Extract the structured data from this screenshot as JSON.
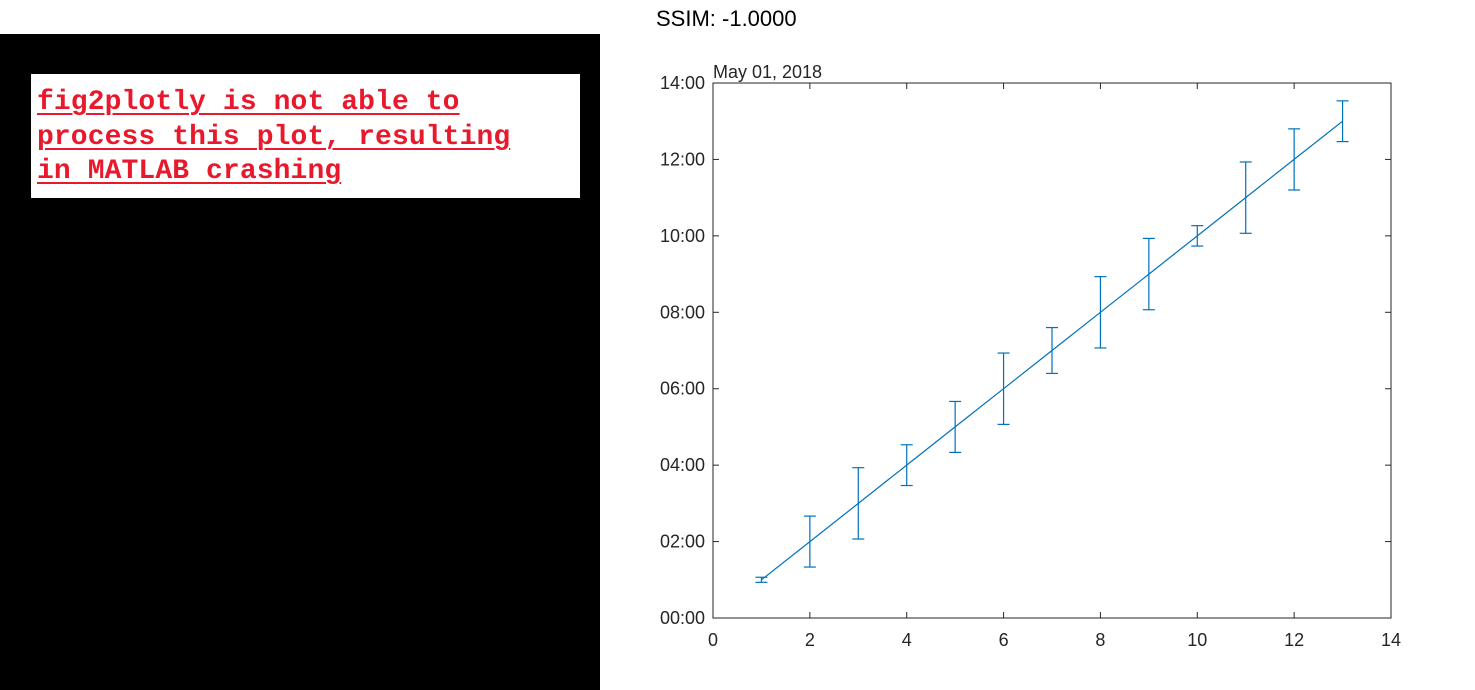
{
  "header": {
    "ssim_label": "SSIM: -1.0000"
  },
  "error_message": {
    "text": "fig2plotly is not able to\nprocess this plot, resulting\nin MATLAB crashing",
    "color": "#e8192c"
  },
  "colors": {
    "series": "#0072bd",
    "left_panel": "#000000"
  },
  "chart_data": {
    "type": "line",
    "date_label": "May 01, 2018",
    "x": [
      1,
      2,
      3,
      4,
      5,
      6,
      7,
      8,
      9,
      10,
      11,
      12,
      13
    ],
    "y": [
      "01:00",
      "02:00",
      "03:00",
      "04:00",
      "05:00",
      "06:00",
      "07:00",
      "08:00",
      "09:00",
      "10:00",
      "11:00",
      "12:00",
      "13:00"
    ],
    "error_upper": [
      "01:04",
      "02:40",
      "03:56",
      "04:32",
      "05:40",
      "06:56",
      "07:36",
      "08:56",
      "09:56",
      "10:16",
      "11:56",
      "12:48",
      "13:32"
    ],
    "error_lower": [
      "00:56",
      "01:20",
      "02:04",
      "03:28",
      "04:20",
      "05:04",
      "06:24",
      "07:04",
      "08:04",
      "09:44",
      "10:04",
      "11:12",
      "12:28"
    ],
    "xlim": [
      0,
      14
    ],
    "ylim": [
      "00:00",
      "14:00"
    ],
    "xticks": [
      "0",
      "2",
      "4",
      "6",
      "8",
      "10",
      "12",
      "14"
    ],
    "yticks": [
      "00:00",
      "02:00",
      "04:00",
      "06:00",
      "08:00",
      "10:00",
      "12:00",
      "14:00"
    ],
    "grid": false
  }
}
